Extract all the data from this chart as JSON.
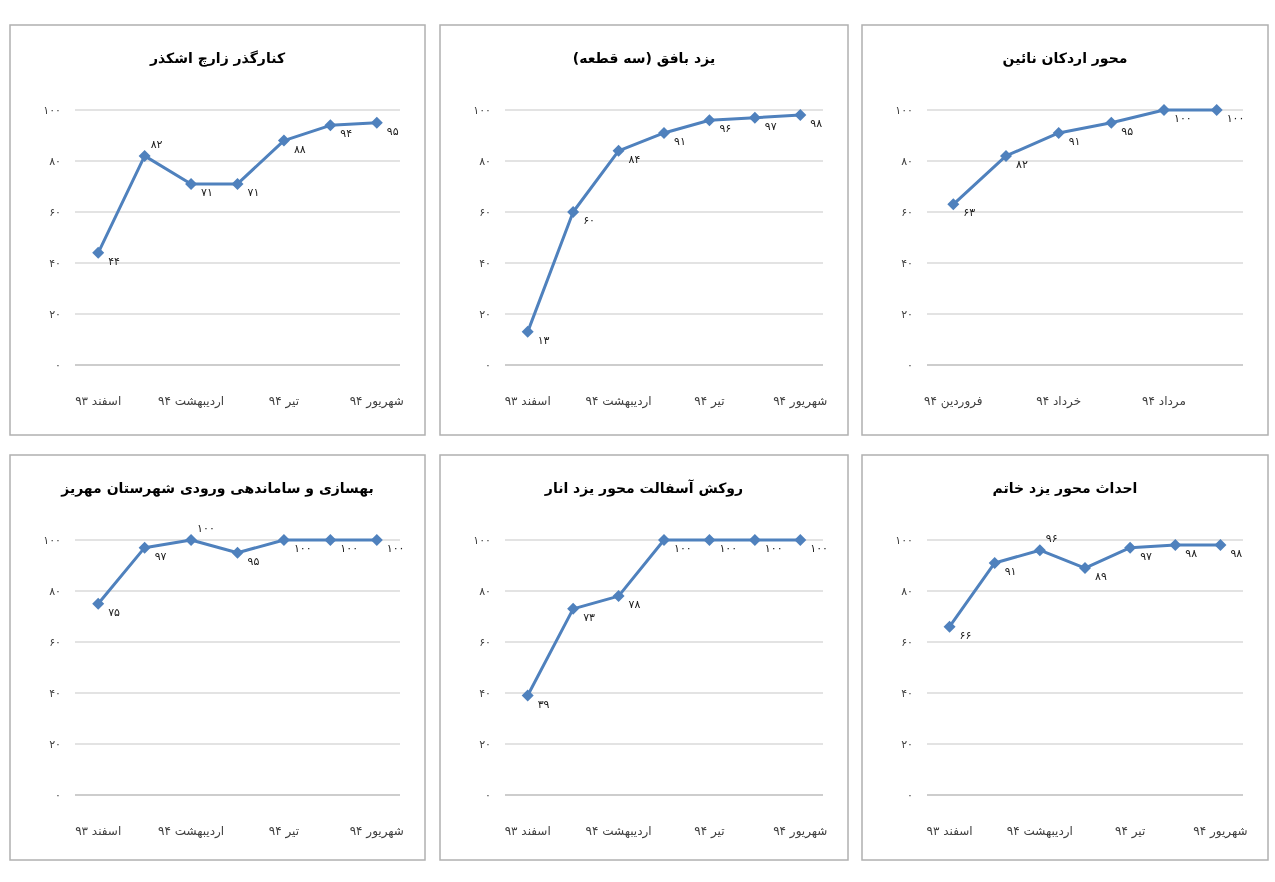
{
  "chart_data": [
    {
      "type": "line",
      "title": "کنارگذر زارچ اشکذر",
      "categories": [
        "اسفند ۹۳",
        null,
        "اردیبهشت ۹۴",
        null,
        "تیر ۹۴",
        null,
        "شهریور ۹۴"
      ],
      "values": [
        44,
        82,
        71,
        71,
        88,
        94,
        95
      ],
      "value_labels": [
        "۴۴",
        "۸۲",
        "۷۱",
        "۷۱",
        "۸۸",
        "۹۴",
        "۹۵"
      ],
      "color": "#4f81bd",
      "marker": "diamond",
      "grid": "y",
      "ylim": [
        0,
        100
      ],
      "yticks": [
        {
          "value": 0,
          "label": "۰"
        },
        {
          "value": 20,
          "label": "۲۰"
        },
        {
          "value": 40,
          "label": "۴۰"
        },
        {
          "value": 60,
          "label": "۶۰"
        },
        {
          "value": 80,
          "label": "۸۰"
        },
        {
          "value": 100,
          "label": "۱۰۰"
        }
      ]
    },
    {
      "type": "line",
      "title": "یزد بافق (سه قطعه)",
      "categories": [
        "اسفند ۹۳",
        null,
        "اردیبهشت ۹۴",
        null,
        "تیر ۹۴",
        null,
        "شهریور ۹۴"
      ],
      "values": [
        13,
        60,
        84,
        91,
        96,
        97,
        98
      ],
      "value_labels": [
        "۱۳",
        "۶۰",
        "۸۴",
        "۹۱",
        "۹۶",
        "۹۷",
        "۹۸"
      ],
      "color": "#4f81bd",
      "marker": "diamond",
      "grid": "y",
      "ylim": [
        0,
        100
      ],
      "yticks": [
        {
          "value": 0,
          "label": "۰"
        },
        {
          "value": 20,
          "label": "۲۰"
        },
        {
          "value": 40,
          "label": "۴۰"
        },
        {
          "value": 60,
          "label": "۶۰"
        },
        {
          "value": 80,
          "label": "۸۰"
        },
        {
          "value": 100,
          "label": "۱۰۰"
        }
      ]
    },
    {
      "type": "line",
      "title": "محور اردکان نائین",
      "categories": [
        "فروردین ۹۴",
        null,
        "خرداد ۹۴",
        null,
        "مرداد ۹۴",
        null
      ],
      "values": [
        63,
        82,
        91,
        95,
        100,
        100
      ],
      "value_labels": [
        "۶۳",
        "۸۲",
        "۹۱",
        "۹۵",
        "۱۰۰",
        "۱۰۰"
      ],
      "color": "#4f81bd",
      "marker": "diamond",
      "grid": "y",
      "ylim": [
        0,
        100
      ],
      "yticks": [
        {
          "value": 0,
          "label": "۰"
        },
        {
          "value": 20,
          "label": "۲۰"
        },
        {
          "value": 40,
          "label": "۴۰"
        },
        {
          "value": 60,
          "label": "۶۰"
        },
        {
          "value": 80,
          "label": "۸۰"
        },
        {
          "value": 100,
          "label": "۱۰۰"
        }
      ]
    },
    {
      "type": "line",
      "title": "بهسازی و ساماندهی ورودی شهرستان مهریز",
      "categories": [
        "اسفند ۹۳",
        null,
        "اردیبهشت ۹۴",
        null,
        "تیر ۹۴",
        null,
        "شهریور ۹۴"
      ],
      "values": [
        75,
        97,
        100,
        95,
        100,
        100,
        100
      ],
      "value_labels": [
        "۷۵",
        "۹۷",
        "۱۰۰",
        "۹۵",
        "۱۰۰",
        "۱۰۰",
        "۱۰۰"
      ],
      "color": "#4f81bd",
      "marker": "diamond",
      "grid": "y",
      "ylim": [
        0,
        100
      ],
      "yticks": [
        {
          "value": 0,
          "label": "۰"
        },
        {
          "value": 20,
          "label": "۲۰"
        },
        {
          "value": 40,
          "label": "۴۰"
        },
        {
          "value": 60,
          "label": "۶۰"
        },
        {
          "value": 80,
          "label": "۸۰"
        },
        {
          "value": 100,
          "label": "۱۰۰"
        }
      ]
    },
    {
      "type": "line",
      "title": "روکش آسفالت محور یزد انار",
      "categories": [
        "اسفند ۹۳",
        null,
        "اردیبهشت ۹۴",
        null,
        "تیر ۹۴",
        null,
        "شهریور ۹۴"
      ],
      "values": [
        39,
        73,
        78,
        100,
        100,
        100,
        100
      ],
      "value_labels": [
        "۳۹",
        "۷۳",
        "۷۸",
        "۱۰۰",
        "۱۰۰",
        "۱۰۰",
        "۱۰۰"
      ],
      "color": "#4f81bd",
      "marker": "diamond",
      "grid": "y",
      "ylim": [
        0,
        100
      ],
      "yticks": [
        {
          "value": 0,
          "label": "۰"
        },
        {
          "value": 20,
          "label": "۲۰"
        },
        {
          "value": 40,
          "label": "۴۰"
        },
        {
          "value": 60,
          "label": "۶۰"
        },
        {
          "value": 80,
          "label": "۸۰"
        },
        {
          "value": 100,
          "label": "۱۰۰"
        }
      ]
    },
    {
      "type": "line",
      "title": "احداث محور یزد خاتم",
      "categories": [
        "اسفند ۹۳",
        null,
        "اردیبهشت ۹۴",
        null,
        "تیر ۹۴",
        null,
        "شهریور ۹۴"
      ],
      "values": [
        66,
        91,
        96,
        89,
        97,
        98,
        98
      ],
      "value_labels": [
        "۶۶",
        "۹۱",
        "۹۶",
        "۸۹",
        "۹۷",
        "۹۸",
        "۹۸"
      ],
      "color": "#4f81bd",
      "marker": "diamond",
      "grid": "y",
      "ylim": [
        0,
        100
      ],
      "yticks": [
        {
          "value": 0,
          "label": "۰"
        },
        {
          "value": 20,
          "label": "۲۰"
        },
        {
          "value": 40,
          "label": "۴۰"
        },
        {
          "value": 60,
          "label": "۶۰"
        },
        {
          "value": 80,
          "label": "۸۰"
        },
        {
          "value": 100,
          "label": "۱۰۰"
        }
      ]
    }
  ]
}
